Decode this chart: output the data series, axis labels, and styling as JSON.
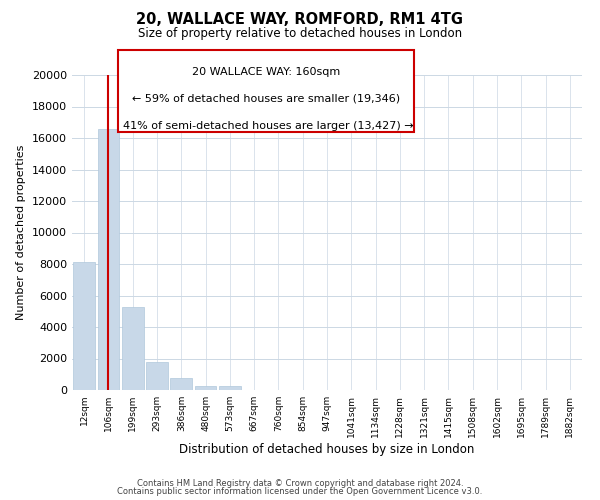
{
  "title": "20, WALLACE WAY, ROMFORD, RM1 4TG",
  "subtitle": "Size of property relative to detached houses in London",
  "xlabel": "Distribution of detached houses by size in London",
  "ylabel": "Number of detached properties",
  "bar_color": "#c8d8e8",
  "bar_edge_color": "#b0c8dc",
  "categories": [
    "12sqm",
    "106sqm",
    "199sqm",
    "293sqm",
    "386sqm",
    "480sqm",
    "573sqm",
    "667sqm",
    "760sqm",
    "854sqm",
    "947sqm",
    "1041sqm",
    "1134sqm",
    "1228sqm",
    "1321sqm",
    "1415sqm",
    "1508sqm",
    "1602sqm",
    "1695sqm",
    "1789sqm",
    "1882sqm"
  ],
  "values": [
    8100,
    16550,
    5300,
    1800,
    780,
    270,
    280,
    0,
    0,
    0,
    0,
    0,
    0,
    0,
    0,
    0,
    0,
    0,
    0,
    0,
    0
  ],
  "ylim": [
    0,
    20000
  ],
  "yticks": [
    0,
    2000,
    4000,
    6000,
    8000,
    10000,
    12000,
    14000,
    16000,
    18000,
    20000
  ],
  "vline_color": "#cc0000",
  "annotation_line1": "20 WALLACE WAY: 160sqm",
  "annotation_line2": "← 59% of detached houses are smaller (19,346)",
  "annotation_line3": "41% of semi-detached houses are larger (13,427) →",
  "footer1": "Contains HM Land Registry data © Crown copyright and database right 2024.",
  "footer2": "Contains public sector information licensed under the Open Government Licence v3.0.",
  "background_color": "#ffffff",
  "grid_color": "#ccd8e4"
}
